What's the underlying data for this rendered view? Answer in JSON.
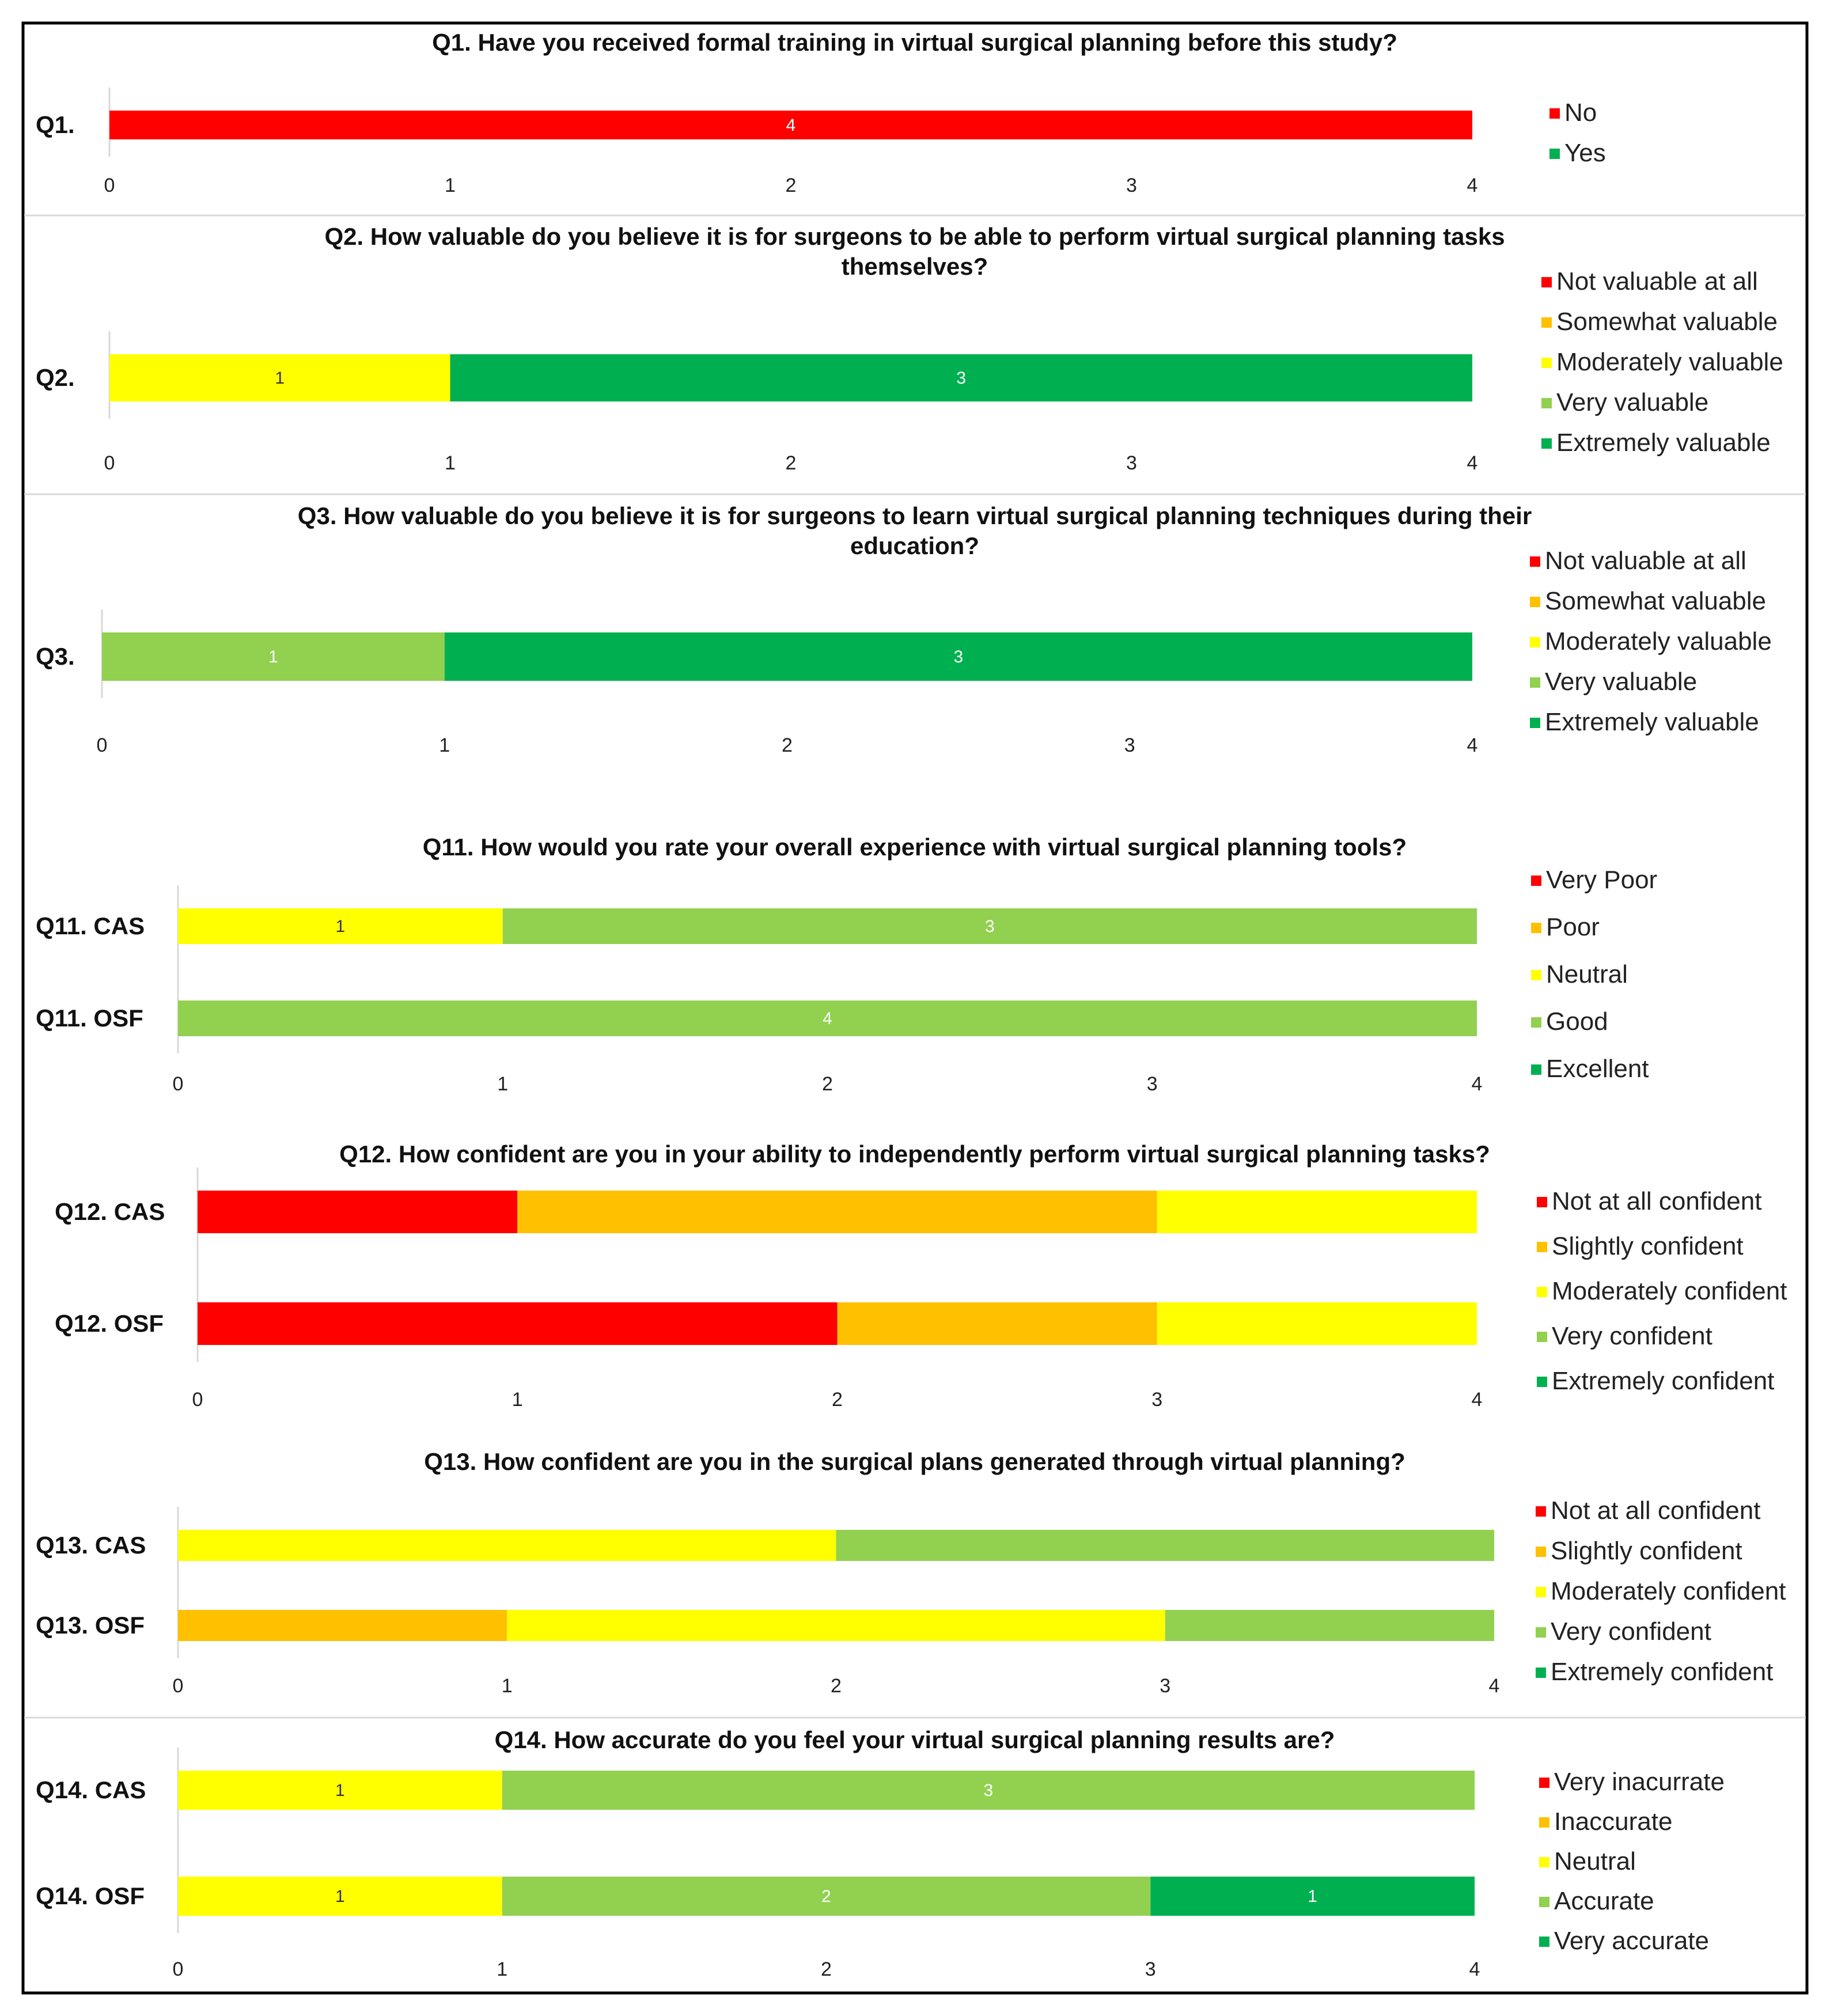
{
  "colors": {
    "red": "#ff0000",
    "orange": "#ffc000",
    "yellow": "#ffff00",
    "lightgreen": "#92d050",
    "green": "#00b050"
  },
  "chart_data": [
    {
      "type": "bar",
      "orientation": "horizontal",
      "stacked": true,
      "title": "Q1. Have you received formal training in virtual surgical planning before this study?",
      "categories": [
        "Q1."
      ],
      "xlim": [
        0,
        4
      ],
      "xticks": [
        "0",
        "1",
        "2",
        "3",
        "4"
      ],
      "legend_position": "right",
      "series": [
        {
          "name": "No",
          "color": "red",
          "values": [
            4
          ],
          "labels": [
            "4"
          ]
        },
        {
          "name": "Yes",
          "color": "green",
          "values": [
            0
          ],
          "labels": [
            ""
          ]
        }
      ]
    },
    {
      "type": "bar",
      "orientation": "horizontal",
      "stacked": true,
      "title": "Q2. How valuable do you believe it is for surgeons to be able to perform virtual surgical planning tasks themselves?",
      "categories": [
        "Q2."
      ],
      "xlim": [
        0,
        4
      ],
      "xticks": [
        "0",
        "1",
        "2",
        "3",
        "4"
      ],
      "legend_position": "right",
      "series": [
        {
          "name": "Not valuable at all",
          "color": "red",
          "values": [
            0
          ],
          "labels": [
            ""
          ]
        },
        {
          "name": "Somewhat valuable",
          "color": "orange",
          "values": [
            0
          ],
          "labels": [
            ""
          ]
        },
        {
          "name": "Moderately valuable",
          "color": "yellow",
          "values": [
            1
          ],
          "labels": [
            "1"
          ]
        },
        {
          "name": "Very valuable",
          "color": "lightgreen",
          "values": [
            0
          ],
          "labels": [
            ""
          ]
        },
        {
          "name": "Extremely valuable",
          "color": "green",
          "values": [
            3
          ],
          "labels": [
            "3"
          ]
        }
      ]
    },
    {
      "type": "bar",
      "orientation": "horizontal",
      "stacked": true,
      "title": "Q3. How valuable do you believe it is for surgeons to learn virtual surgical planning techniques during their education?",
      "categories": [
        "Q3."
      ],
      "xlim": [
        0,
        4
      ],
      "xticks": [
        "0",
        "1",
        "2",
        "3",
        "4"
      ],
      "legend_position": "right",
      "series": [
        {
          "name": "Not valuable at all",
          "color": "red",
          "values": [
            0
          ],
          "labels": [
            ""
          ]
        },
        {
          "name": "Somewhat valuable",
          "color": "orange",
          "values": [
            0
          ],
          "labels": [
            ""
          ]
        },
        {
          "name": "Moderately valuable",
          "color": "yellow",
          "values": [
            0
          ],
          "labels": [
            ""
          ]
        },
        {
          "name": "Very valuable",
          "color": "lightgreen",
          "values": [
            1
          ],
          "labels": [
            "1"
          ]
        },
        {
          "name": "Extremely valuable",
          "color": "green",
          "values": [
            3
          ],
          "labels": [
            "3"
          ]
        }
      ]
    },
    {
      "type": "bar",
      "orientation": "horizontal",
      "stacked": true,
      "title": "Q11. How would you rate your overall experience with virtual surgical planning tools?",
      "categories": [
        "Q11. CAS",
        "Q11. OSF"
      ],
      "xlim": [
        0,
        4
      ],
      "xticks": [
        "0",
        "1",
        "2",
        "3",
        "4"
      ],
      "legend_position": "right",
      "series": [
        {
          "name": "Very Poor",
          "color": "red",
          "values": [
            0,
            0
          ],
          "labels": [
            "",
            ""
          ]
        },
        {
          "name": "Poor",
          "color": "orange",
          "values": [
            0,
            0
          ],
          "labels": [
            "",
            ""
          ]
        },
        {
          "name": "Neutral",
          "color": "yellow",
          "values": [
            1,
            0
          ],
          "labels": [
            "1",
            ""
          ]
        },
        {
          "name": "Good",
          "color": "lightgreen",
          "values": [
            3,
            4
          ],
          "labels": [
            "3",
            "4"
          ]
        },
        {
          "name": "Excellent",
          "color": "green",
          "values": [
            0,
            0
          ],
          "labels": [
            "",
            ""
          ]
        }
      ]
    },
    {
      "type": "bar",
      "orientation": "horizontal",
      "stacked": true,
      "title": "Q12. How confident are you in your ability to independently perform virtual surgical planning tasks?",
      "categories": [
        "Q12. CAS",
        "Q12. OSF"
      ],
      "xlim": [
        0,
        4
      ],
      "xticks": [
        "0",
        "1",
        "2",
        "3",
        "4"
      ],
      "legend_position": "right",
      "series": [
        {
          "name": "Not at all confident",
          "color": "red",
          "values": [
            1,
            2
          ],
          "labels": [
            "",
            ""
          ]
        },
        {
          "name": "Slightly confident",
          "color": "orange",
          "values": [
            2,
            1
          ],
          "labels": [
            "",
            ""
          ]
        },
        {
          "name": "Moderately confident",
          "color": "yellow",
          "values": [
            1,
            1
          ],
          "labels": [
            "",
            ""
          ]
        },
        {
          "name": "Very confident",
          "color": "lightgreen",
          "values": [
            0,
            0
          ],
          "labels": [
            "",
            ""
          ]
        },
        {
          "name": "Extremely confident",
          "color": "green",
          "values": [
            0,
            0
          ],
          "labels": [
            "",
            ""
          ]
        }
      ]
    },
    {
      "type": "bar",
      "orientation": "horizontal",
      "stacked": true,
      "title": "Q13. How confident are you in the surgical plans generated through virtual planning?",
      "categories": [
        "Q13. CAS",
        "Q13. OSF"
      ],
      "xlim": [
        0,
        4
      ],
      "xticks": [
        "0",
        "1",
        "2",
        "3",
        "4"
      ],
      "legend_position": "right",
      "series": [
        {
          "name": "Not at all confident",
          "color": "red",
          "values": [
            0,
            0
          ],
          "labels": [
            "",
            ""
          ]
        },
        {
          "name": "Slightly confident",
          "color": "orange",
          "values": [
            0,
            1
          ],
          "labels": [
            "",
            ""
          ]
        },
        {
          "name": "Moderately confident",
          "color": "yellow",
          "values": [
            2,
            2
          ],
          "labels": [
            "",
            ""
          ]
        },
        {
          "name": "Very confident",
          "color": "lightgreen",
          "values": [
            2,
            1
          ],
          "labels": [
            "",
            ""
          ]
        },
        {
          "name": "Extremely confident",
          "color": "green",
          "values": [
            0,
            0
          ],
          "labels": [
            "",
            ""
          ]
        }
      ]
    },
    {
      "type": "bar",
      "orientation": "horizontal",
      "stacked": true,
      "title": "Q14. How accurate do you feel your virtual surgical planning results are?",
      "categories": [
        "Q14. CAS",
        "Q14. OSF"
      ],
      "xlim": [
        0,
        4
      ],
      "xticks": [
        "0",
        "1",
        "2",
        "3",
        "4"
      ],
      "legend_position": "right",
      "series": [
        {
          "name": "Very inacurrate",
          "color": "red",
          "values": [
            0,
            0
          ],
          "labels": [
            "",
            ""
          ]
        },
        {
          "name": "Inaccurate",
          "color": "orange",
          "values": [
            0,
            0
          ],
          "labels": [
            "",
            ""
          ]
        },
        {
          "name": "Neutral",
          "color": "yellow",
          "values": [
            1,
            1
          ],
          "labels": [
            "1",
            "1"
          ]
        },
        {
          "name": "Accurate",
          "color": "lightgreen",
          "values": [
            3,
            2
          ],
          "labels": [
            "3",
            "2"
          ]
        },
        {
          "name": "Very accurate",
          "color": "green",
          "values": [
            0,
            1
          ],
          "labels": [
            "",
            "1"
          ]
        }
      ]
    }
  ]
}
